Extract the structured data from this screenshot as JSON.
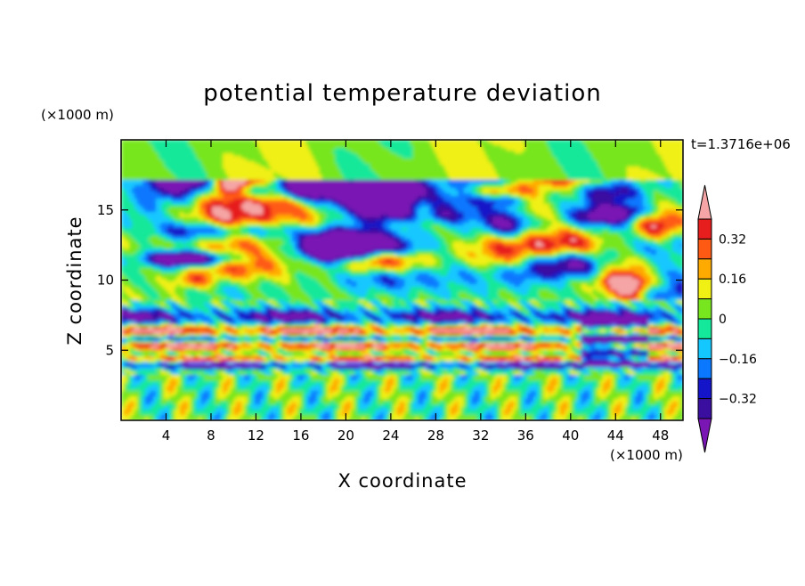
{
  "chart_data": {
    "type": "heatmap",
    "title": "potential temperature deviation",
    "xlabel": "X coordinate",
    "ylabel": "Z coordinate",
    "x_unit": "(×1000 m)",
    "y_unit": "(×1000 m)",
    "time_label": "t=1.3716e+06",
    "xlim": [
      0,
      50
    ],
    "ylim": [
      0,
      20
    ],
    "x_ticks": [
      4,
      8,
      12,
      16,
      20,
      24,
      28,
      32,
      36,
      40,
      44,
      48
    ],
    "y_ticks": [
      5,
      10,
      15
    ],
    "colorbar": {
      "levels": [
        -0.4,
        -0.32,
        -0.24,
        -0.16,
        -0.08,
        0,
        0.08,
        0.16,
        0.24,
        0.32,
        0.4
      ],
      "labels": [
        {
          "value": 0.32,
          "text": "0.32"
        },
        {
          "value": 0.16,
          "text": "0.16"
        },
        {
          "value": 0,
          "text": "0"
        },
        {
          "value": -0.16,
          "text": "−0.16"
        },
        {
          "value": -0.32,
          "text": "−0.32"
        }
      ],
      "colors": [
        "#7a16b4",
        "#3a0fa0",
        "#1414c8",
        "#0a78ff",
        "#14c8ff",
        "#14e89a",
        "#78e61e",
        "#f0f014",
        "#ffaa00",
        "#ff5a14",
        "#e61e1e",
        "#f5a5a5"
      ],
      "extend": "both"
    }
  }
}
